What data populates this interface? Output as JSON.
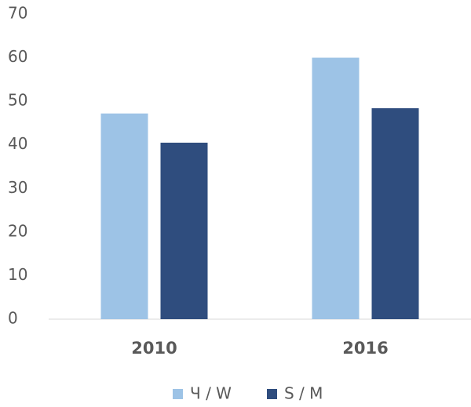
{
  "chart_data": {
    "type": "bar",
    "categories": [
      "2010",
      "2016"
    ],
    "series": [
      {
        "name": "Ч / W",
        "color": "#9dc3e6",
        "values": [
          47.2,
          60
        ]
      },
      {
        "name": "S / M",
        "color": "#2f4d7e",
        "values": [
          40.5,
          48.4
        ]
      }
    ],
    "ylim": [
      0,
      70
    ],
    "yticks": [
      0,
      10,
      20,
      30,
      40,
      50,
      60,
      70
    ],
    "grid": false,
    "legend": "bottom"
  }
}
